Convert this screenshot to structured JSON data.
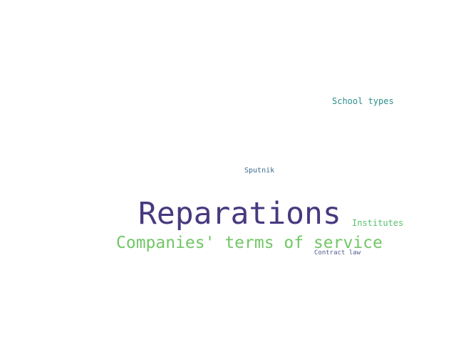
{
  "word_cloud": {
    "words": [
      {
        "id": "reparations",
        "text": "Reparations",
        "color": "#48397f"
      },
      {
        "id": "companies",
        "text": "Companies' terms of service",
        "color": "#71c765"
      },
      {
        "id": "school",
        "text": "School types",
        "color": "#2c908c"
      },
      {
        "id": "sputnik",
        "text": "Sputnik",
        "color": "#3a6a8e"
      },
      {
        "id": "institutes",
        "text": "Institutes",
        "color": "#58c26f"
      },
      {
        "id": "contract",
        "text": "Contract law",
        "color": "#4f5c8d"
      }
    ]
  }
}
